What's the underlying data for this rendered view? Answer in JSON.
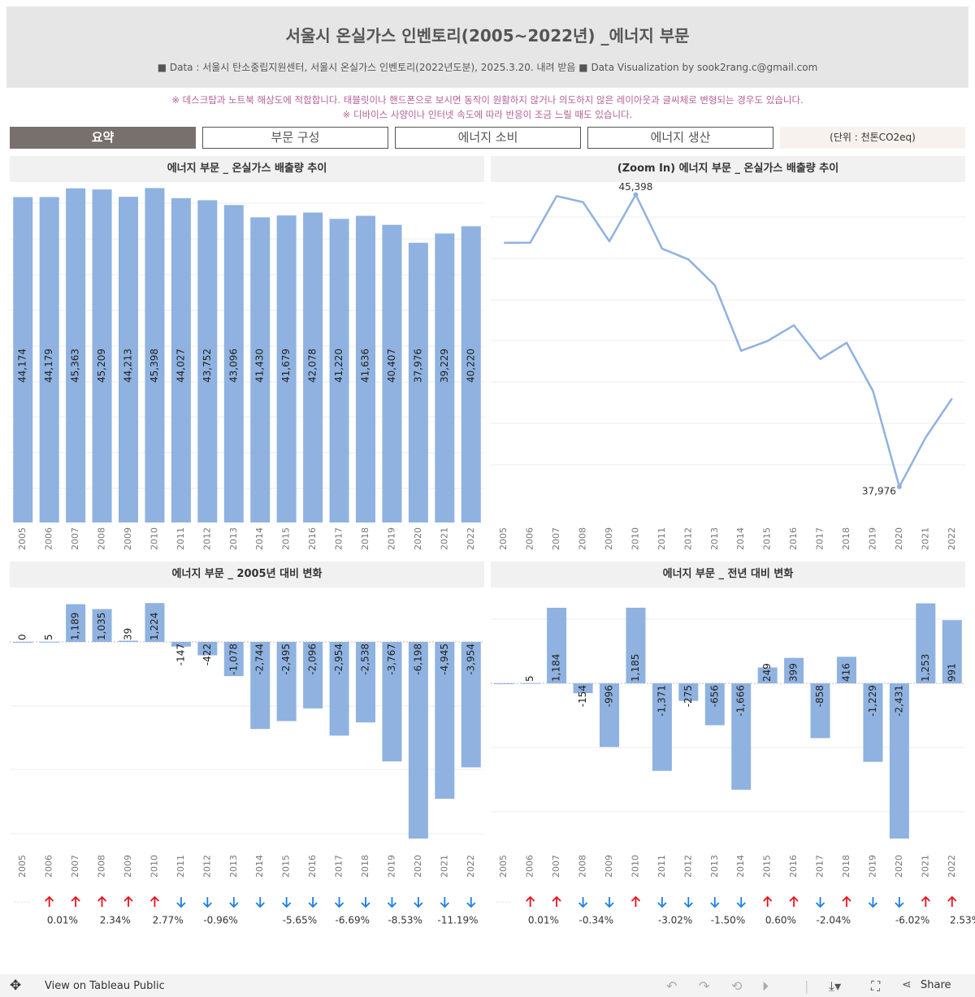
{
  "header": {
    "title": "서울시 온실가스 인벤토리(2005~2022년) _에너지 부문",
    "subtitle": "■ Data : 서울시 탄소중립지원센터, 서울시 온실가스 인벤토리(2022년도분), 2025.3.20. 내려 받음  ■ Data Visualization by sook2rang.c@gmail.com"
  },
  "notice": {
    "line1": "※ 데스크탑과 노트북 해상도에 적합합니다. 태블릿이나 핸드폰으로 보시면 동작이 원활하지 않거나 의도하지 않은 레이아웃과 글씨체로 변형되는 경우도 있습니다.",
    "line2": "※ 디바이스 사양이나 인터넷 속도에 따라 반응이 조금 느릴 때도 있습니다."
  },
  "tabs": [
    "요약",
    "부문 구성",
    "에너지 소비",
    "에너지 생산"
  ],
  "unit_label": "(단위 : 천톤CO2eq)",
  "panels": {
    "p1": "에너지 부문  _ 온실가스 배출량 추이",
    "p2": "(Zoom In) 에너지 부문  _ 온실가스 배출량 추이",
    "p3": "에너지 부문  _ 2005년 대비 변화",
    "p4": "에너지 부문  _ 전년 대비 변화"
  },
  "footer": {
    "tableau_link": "View on Tableau Public",
    "share": "Share"
  },
  "colors": {
    "bar": "#8fb2e0",
    "line": "#8fb2e0",
    "up": "#e8111c",
    "down": "#1a7ee6"
  },
  "chart_data": [
    {
      "type": "bar",
      "title": "에너지 부문  _ 온실가스 배출량 추이",
      "categories": [
        "2005",
        "2006",
        "2007",
        "2008",
        "2009",
        "2010",
        "2011",
        "2012",
        "2013",
        "2014",
        "2015",
        "2016",
        "2017",
        "2018",
        "2019",
        "2020",
        "2021",
        "2022"
      ],
      "values": [
        44174,
        44179,
        45363,
        45209,
        44213,
        45398,
        44027,
        43752,
        43096,
        41430,
        41679,
        42078,
        41220,
        41636,
        40407,
        37976,
        39229,
        40220
      ],
      "labels": [
        "44,174",
        "44,179",
        "45,363",
        "45,209",
        "44,213",
        "45,398",
        "44,027",
        "43,752",
        "43,096",
        "41,430",
        "41,679",
        "42,078",
        "41,220",
        "41,636",
        "40,407",
        "37,976",
        "39,229",
        "40,220"
      ],
      "ylim": [
        0,
        46000
      ]
    },
    {
      "type": "line",
      "title": "(Zoom In) 에너지 부문  _ 온실가스 배출량 추이",
      "categories": [
        "2005",
        "2006",
        "2007",
        "2008",
        "2009",
        "2010",
        "2011",
        "2012",
        "2013",
        "2014",
        "2015",
        "2016",
        "2017",
        "2018",
        "2019",
        "2020",
        "2021",
        "2022"
      ],
      "values": [
        44174,
        44179,
        45363,
        45209,
        44213,
        45398,
        44027,
        43752,
        43096,
        41430,
        41679,
        42078,
        41220,
        41636,
        40407,
        37976,
        39229,
        40220
      ],
      "annotations": [
        {
          "index": 5,
          "label": "45,398"
        },
        {
          "index": 15,
          "label": "37,976"
        }
      ],
      "ylim": [
        37500,
        45700
      ]
    },
    {
      "type": "bar",
      "title": "에너지 부문  _ 2005년 대비 변화",
      "categories": [
        "2005",
        "2006",
        "2007",
        "2008",
        "2009",
        "2010",
        "2011",
        "2012",
        "2013",
        "2014",
        "2015",
        "2016",
        "2017",
        "2018",
        "2019",
        "2020",
        "2021",
        "2022"
      ],
      "values": [
        0,
        5,
        1189,
        1035,
        39,
        1224,
        -147,
        -422,
        -1078,
        -2744,
        -2495,
        -2096,
        -2954,
        -2538,
        -3767,
        -6198,
        -4945,
        -3954
      ],
      "labels": [
        "0",
        "5",
        "1,189",
        "1,035",
        "39",
        "1,224",
        "-147",
        "-422",
        "-1,078",
        "-2,744",
        "-2,495",
        "-2,096",
        "-2,954",
        "-2,538",
        "-3,767",
        "-6,198",
        "-4,945",
        "-3,954"
      ],
      "directions": [
        "none",
        "up",
        "up",
        "up",
        "up",
        "up",
        "down",
        "down",
        "down",
        "down",
        "down",
        "down",
        "down",
        "down",
        "down",
        "down",
        "down",
        "down"
      ],
      "pct_labels": [
        "",
        "0.01%",
        "",
        "2.34%",
        "",
        "2.77%",
        "",
        "-0.96%",
        "",
        "",
        "-5.65%",
        "",
        "-6.69%",
        "",
        "-8.53%",
        "",
        "-11.19%",
        ""
      ],
      "ylim": [
        -6300,
        1300
      ]
    },
    {
      "type": "bar",
      "title": "에너지 부문  _ 전년 대비 변화",
      "categories": [
        "2005",
        "2006",
        "2007",
        "2008",
        "2009",
        "2010",
        "2011",
        "2012",
        "2013",
        "2014",
        "2015",
        "2016",
        "2017",
        "2018",
        "2019",
        "2020",
        "2021",
        "2022"
      ],
      "values": [
        0,
        5,
        1184,
        -154,
        -996,
        1185,
        -1371,
        -275,
        -656,
        -1666,
        249,
        399,
        -858,
        416,
        -1229,
        -2431,
        1253,
        991
      ],
      "labels": [
        "",
        "5",
        "1,184",
        "-154",
        "-996",
        "1,185",
        "-1,371",
        "-275",
        "-656",
        "-1,666",
        "249",
        "399",
        "-858",
        "416",
        "-1,229",
        "-2,431",
        "1,253",
        "991"
      ],
      "directions": [
        "none",
        "up",
        "up",
        "down",
        "down",
        "up",
        "down",
        "down",
        "down",
        "down",
        "up",
        "up",
        "down",
        "up",
        "down",
        "down",
        "up",
        "up"
      ],
      "pct_labels": [
        "",
        "0.01%",
        "",
        "-0.34%",
        "",
        "",
        "-3.02%",
        "",
        "-1.50%",
        "",
        "0.60%",
        "",
        "-2.04%",
        "",
        "",
        "-6.02%",
        "",
        "2.53%"
      ],
      "ylim": [
        -2500,
        1300
      ]
    }
  ]
}
